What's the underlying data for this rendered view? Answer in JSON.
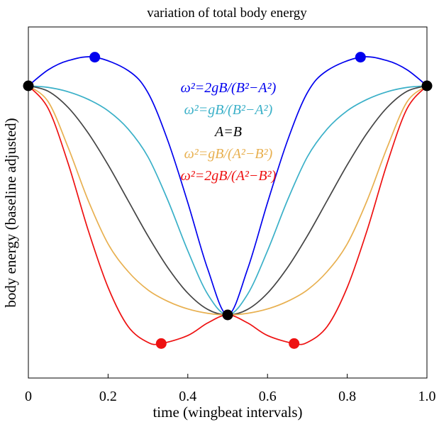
{
  "chart_data": {
    "type": "line",
    "title": "variation of total body energy",
    "xlabel": "time (wingbeat intervals)",
    "ylabel": "body energy (baseline adjusted)",
    "xlim": [
      0,
      1
    ],
    "ylim": [
      -1.25,
      0.2
    ],
    "x_ticks": [
      0,
      0.2,
      0.4,
      0.6,
      0.8,
      1.0
    ],
    "x_tick_labels": [
      "0",
      "0.2",
      "0.4",
      "0.6",
      "0.8",
      "1.0"
    ],
    "y_ticks_shown": false,
    "grid": false,
    "legend_position": "top-center",
    "series": [
      {
        "name": "ω²=2gB/(B²−A²)",
        "color": "#0000ee",
        "x": [
          0,
          0.05,
          0.1,
          0.1667,
          0.25,
          0.3,
          0.35,
          0.4,
          0.45,
          0.5,
          0.55,
          0.6,
          0.65,
          0.7,
          0.75,
          0.8333,
          0.9,
          0.95,
          1.0
        ],
        "y": [
          0,
          0.07,
          0.11,
          0.125,
          0.067,
          -0.03,
          -0.24,
          -0.51,
          -0.8,
          -1.0,
          -0.8,
          -0.51,
          -0.24,
          -0.03,
          0.067,
          0.125,
          0.11,
          0.07,
          0
        ]
      },
      {
        "name": "ω²=gB/(B²−A²)",
        "color": "#3ab0c8",
        "x": [
          0,
          0.05,
          0.1,
          0.15,
          0.2,
          0.25,
          0.3,
          0.35,
          0.4,
          0.45,
          0.5,
          0.55,
          0.6,
          0.65,
          0.7,
          0.75,
          0.8,
          0.85,
          0.9,
          0.95,
          1.0
        ],
        "y": [
          0,
          -0.007,
          -0.026,
          -0.059,
          -0.109,
          -0.188,
          -0.31,
          -0.5,
          -0.72,
          -0.91,
          -1.0,
          -0.91,
          -0.72,
          -0.5,
          -0.31,
          -0.188,
          -0.109,
          -0.059,
          -0.026,
          -0.007,
          0
        ]
      },
      {
        "name": "A=B",
        "color": "#444444",
        "x": [
          0,
          0.05,
          0.1,
          0.15,
          0.2,
          0.25,
          0.3,
          0.35,
          0.4,
          0.45,
          0.5,
          0.55,
          0.6,
          0.65,
          0.7,
          0.75,
          0.8,
          0.85,
          0.9,
          0.95,
          1.0
        ],
        "y": [
          0,
          -0.024,
          -0.095,
          -0.206,
          -0.345,
          -0.5,
          -0.655,
          -0.794,
          -0.905,
          -0.976,
          -1.0,
          -0.976,
          -0.905,
          -0.794,
          -0.655,
          -0.5,
          -0.345,
          -0.206,
          -0.095,
          -0.024,
          0
        ]
      },
      {
        "name": "ω²=gB/(A²−B²)",
        "color": "#e8b050",
        "x": [
          0,
          0.05,
          0.1,
          0.15,
          0.2,
          0.25,
          0.3,
          0.35,
          0.4,
          0.45,
          0.5,
          0.55,
          0.6,
          0.65,
          0.7,
          0.75,
          0.8,
          0.85,
          0.9,
          0.95,
          1.0
        ],
        "y": [
          0,
          -0.07,
          -0.27,
          -0.5,
          -0.69,
          -0.81,
          -0.891,
          -0.941,
          -0.974,
          -0.993,
          -1.0,
          -0.993,
          -0.974,
          -0.941,
          -0.891,
          -0.81,
          -0.69,
          -0.5,
          -0.27,
          -0.07,
          0
        ]
      },
      {
        "name": "ω²=2gB/(A²−B²)",
        "color": "#ee1111",
        "x": [
          0,
          0.05,
          0.1,
          0.15,
          0.2,
          0.25,
          0.3,
          0.3333,
          0.4,
          0.45,
          0.5,
          0.55,
          0.6,
          0.6667,
          0.7,
          0.75,
          0.8,
          0.85,
          0.9,
          0.95,
          1.0
        ],
        "y": [
          0,
          -0.1,
          -0.34,
          -0.63,
          -0.88,
          -1.05,
          -1.12,
          -1.125,
          -1.09,
          -1.035,
          -1.0,
          -1.035,
          -1.09,
          -1.125,
          -1.12,
          -1.05,
          -0.88,
          -0.63,
          -0.34,
          -0.1,
          0
        ]
      }
    ],
    "markers": [
      {
        "x": 0,
        "y": 0,
        "color": "#000000"
      },
      {
        "x": 1.0,
        "y": 0,
        "color": "#000000"
      },
      {
        "x": 0.5,
        "y": -1.0,
        "color": "#000000"
      },
      {
        "x": 0.1667,
        "y": 0.125,
        "color": "#0000ee"
      },
      {
        "x": 0.8333,
        "y": 0.125,
        "color": "#0000ee"
      },
      {
        "x": 0.3333,
        "y": -1.125,
        "color": "#ee1111"
      },
      {
        "x": 0.6667,
        "y": -1.125,
        "color": "#ee1111"
      }
    ]
  }
}
